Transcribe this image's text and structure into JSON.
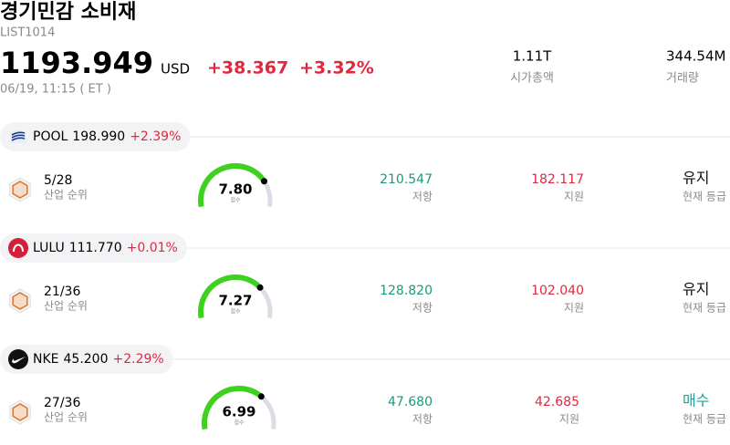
{
  "header": {
    "title": "경기민감 소비재",
    "code": "LIST1014",
    "price": "1193.949",
    "currency": "USD",
    "change": "+38.367",
    "change_pct": "+3.32%",
    "time": "06/19, 11:15 ( ET )",
    "stats": [
      {
        "value": "1.11T",
        "label": "시가총액"
      },
      {
        "value": "344.54M",
        "label": "거래량"
      }
    ]
  },
  "stocks": [
    {
      "ticker": "POOL",
      "price": "198.990",
      "change": "+2.39%",
      "rank": "5/28",
      "rank_label": "산업 순위",
      "score": {
        "value": 7.8,
        "label": "7.80"
      },
      "score_caption": "점수",
      "score_lim": [
        0,
        10
      ],
      "resistance": "210.547",
      "resistance_label": "저항",
      "support": "182.117",
      "support_label": "지원",
      "rating": "유지",
      "rating_color": "#111111",
      "rating_label": "현재 등급"
    },
    {
      "ticker": "LULU",
      "price": "111.770",
      "change": "+0.01%",
      "rank": "21/36",
      "rank_label": "산업 순위",
      "score": {
        "value": 7.27,
        "label": "7.27"
      },
      "score_caption": "점수",
      "score_lim": [
        0,
        10
      ],
      "resistance": "128.820",
      "resistance_label": "저항",
      "support": "102.040",
      "support_label": "지원",
      "rating": "유지",
      "rating_color": "#111111",
      "rating_label": "현재 등급"
    },
    {
      "ticker": "NKE",
      "price": "45.200",
      "change": "+2.29%",
      "rank": "27/36",
      "rank_label": "산업 순위",
      "score": {
        "value": 6.99,
        "label": "6.99"
      },
      "score_caption": "점수",
      "score_lim": [
        0,
        10
      ],
      "resistance": "47.680",
      "resistance_label": "저항",
      "support": "42.685",
      "support_label": "지원",
      "rating": "매수",
      "rating_color": "#1aa39a",
      "rating_label": "현재 등급"
    }
  ]
}
